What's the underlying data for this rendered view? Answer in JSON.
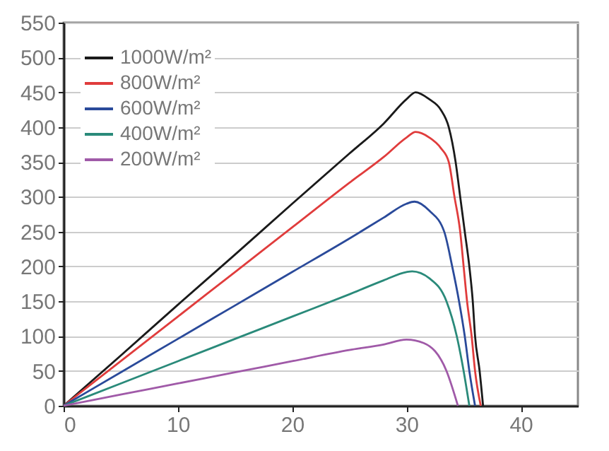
{
  "chart_data": {
    "type": "line",
    "xlim": [
      0,
      45
    ],
    "xticks": [
      0,
      10,
      20,
      30,
      40
    ],
    "ylim": [
      0,
      550
    ],
    "yticks": [
      0,
      50,
      100,
      150,
      200,
      250,
      300,
      350,
      400,
      450,
      500,
      550
    ],
    "grid": "y",
    "legend": "top left",
    "marker": "none",
    "line_style": "solid",
    "series": [
      {
        "name": "1000W/m²",
        "color": "#1a1a1a",
        "x": [
          0,
          5,
          10,
          15,
          20,
          25,
          28,
          30,
          30.8,
          32,
          33,
          33.7,
          34.3,
          34.7,
          35.1,
          35.5,
          35.8,
          36.0,
          36.4,
          36.7
        ],
        "values": [
          0,
          72,
          145,
          217,
          290,
          362,
          405,
          440,
          450,
          440,
          425,
          400,
          350,
          300,
          250,
          200,
          150,
          100,
          50,
          0
        ]
      },
      {
        "name": "800W/m²",
        "color": "#e03c3c",
        "x": [
          0,
          5,
          10,
          15,
          20,
          25,
          28,
          30,
          30.8,
          32,
          33,
          33.7,
          34.2,
          34.7,
          35.0,
          35.3,
          35.7,
          36.0,
          36.5
        ],
        "values": [
          0,
          64,
          128,
          192,
          256,
          320,
          357,
          385,
          393,
          385,
          370,
          350,
          300,
          250,
          200,
          150,
          100,
          50,
          0
        ]
      },
      {
        "name": "600W/m²",
        "color": "#2a4a9a",
        "x": [
          0,
          5,
          10,
          15,
          20,
          25,
          28,
          30,
          30.7,
          32,
          33.3,
          34.0,
          34.6,
          35.1,
          35.5,
          36.0
        ],
        "values": [
          0,
          48,
          96,
          144,
          192,
          240,
          270,
          290,
          293,
          280,
          250,
          200,
          150,
          100,
          50,
          0
        ]
      },
      {
        "name": "400W/m²",
        "color": "#2a8a7a",
        "x": [
          0,
          5,
          10,
          15,
          20,
          25,
          28,
          30,
          30.5,
          32,
          33.5,
          34.4,
          35.0,
          35.5
        ],
        "values": [
          0,
          32,
          64,
          96,
          128,
          160,
          180,
          192,
          193,
          183,
          150,
          100,
          50,
          0
        ]
      },
      {
        "name": "200W/m²",
        "color": "#a05aa8",
        "x": [
          0,
          5,
          10,
          15,
          20,
          25,
          28,
          30,
          31.5,
          33.5,
          34.5
        ],
        "values": [
          0,
          16,
          32,
          48,
          64,
          80,
          88,
          95,
          90,
          50,
          0
        ]
      }
    ]
  }
}
